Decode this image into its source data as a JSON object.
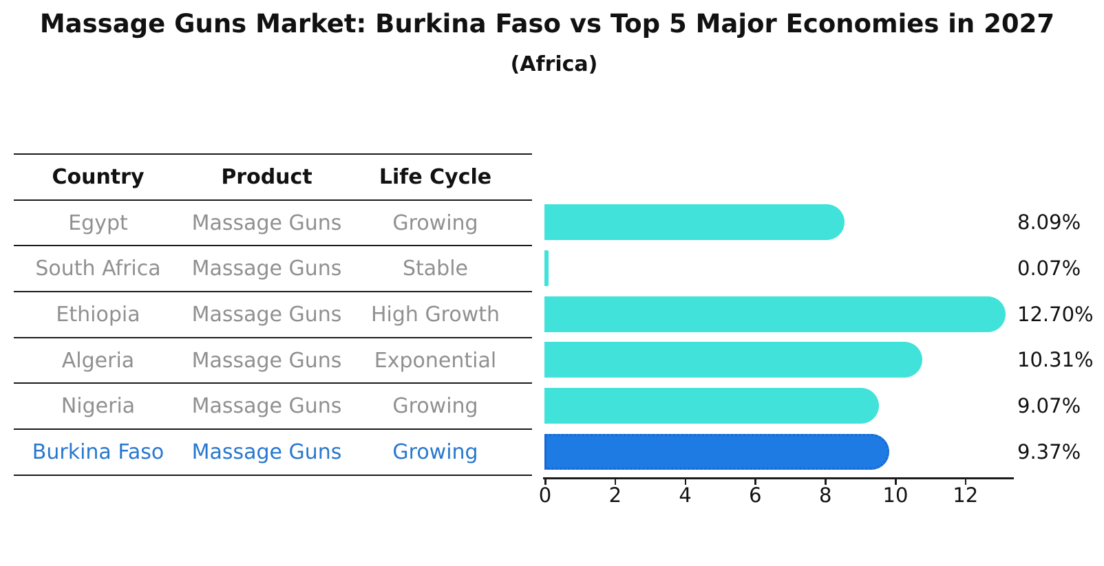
{
  "title": "Massage Guns Market: Burkina Faso vs Top 5 Major Economies in 2027",
  "subtitle": "(Africa)",
  "table": {
    "headers": [
      "Country",
      "Product",
      "Life Cycle"
    ],
    "rows": [
      {
        "country": "Egypt",
        "product": "Massage Guns",
        "life_cycle": "Growing",
        "highlight": false
      },
      {
        "country": "South Africa",
        "product": "Massage Guns",
        "life_cycle": "Stable",
        "highlight": false
      },
      {
        "country": "Ethiopia",
        "product": "Massage Guns",
        "life_cycle": "High Growth",
        "highlight": false
      },
      {
        "country": "Algeria",
        "product": "Massage Guns",
        "life_cycle": "Exponential",
        "highlight": false
      },
      {
        "country": "Nigeria",
        "product": "Massage Guns",
        "life_cycle": "Growing",
        "highlight": false
      },
      {
        "country": "Burkina Faso",
        "product": "Massage Guns",
        "life_cycle": "Growing",
        "highlight": true
      }
    ]
  },
  "chart_data": {
    "type": "bar",
    "orientation": "horizontal",
    "categories": [
      "Egypt",
      "South Africa",
      "Ethiopia",
      "Algeria",
      "Nigeria",
      "Burkina Faso"
    ],
    "values": [
      8.09,
      0.07,
      12.7,
      10.31,
      9.07,
      9.37
    ],
    "value_labels": [
      "8.09%",
      "0.07%",
      "12.70%",
      "10.31%",
      "9.07%",
      "9.37%"
    ],
    "xticks": [
      0,
      2,
      4,
      6,
      8,
      10,
      12
    ],
    "xlim": [
      0,
      13.4
    ],
    "grid": false,
    "legend": "none",
    "bar_color": "#40E2D9",
    "highlight_color": "#1E7BE3",
    "highlight_index": 5
  },
  "colors": {
    "bar": "#40E2D9",
    "highlight_bar": "#1E7BE3",
    "highlight_text": "#2878CE",
    "muted_text": "#909090",
    "axis": "#1a1a1a"
  }
}
